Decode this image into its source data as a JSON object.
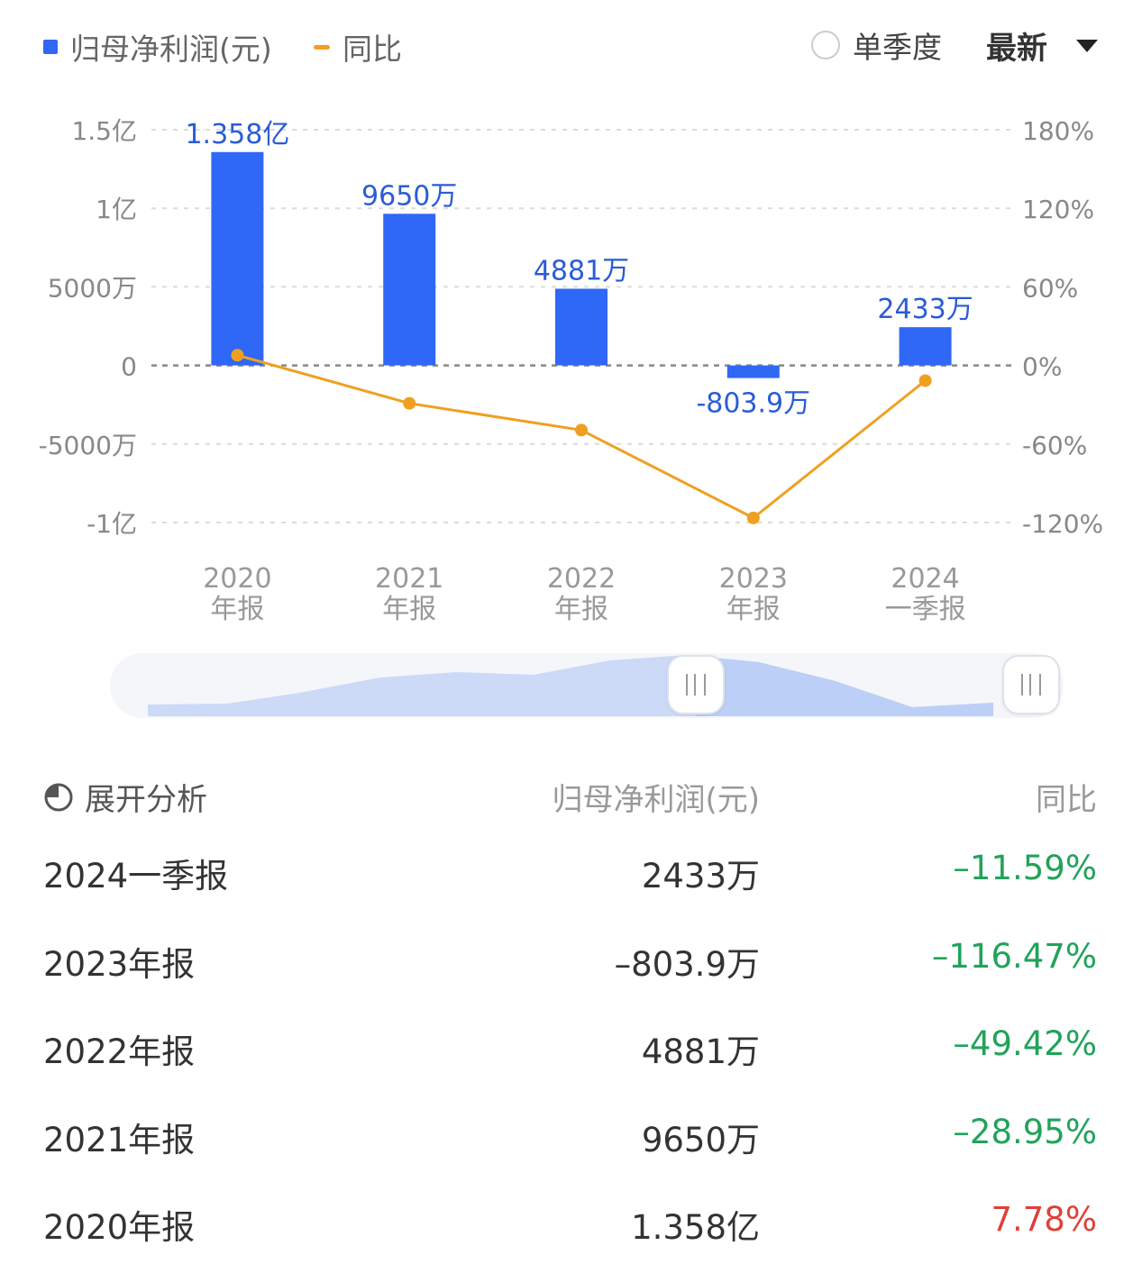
{
  "legend": {
    "bar_label": "归母净利润(元)",
    "line_label": "同比"
  },
  "controls": {
    "radio_label": "单季度",
    "dropdown_value": "最新"
  },
  "colors": {
    "bar": "#2f67f6",
    "line": "#f0a020",
    "negative": "#22a35a",
    "positive": "#e0403a"
  },
  "chart_data": {
    "type": "bar+line",
    "categories": [
      {
        "year": "2020",
        "period": "年报"
      },
      {
        "year": "2021",
        "period": "年报"
      },
      {
        "year": "2022",
        "period": "年报"
      },
      {
        "year": "2023",
        "period": "年报"
      },
      {
        "year": "2024",
        "period": "一季报"
      }
    ],
    "series": [
      {
        "name": "归母净利润(元)",
        "type": "bar",
        "axis": "left",
        "values": [
          135800000,
          96500000,
          48810000,
          -8039000,
          24330000
        ],
        "labels": [
          "1.358亿",
          "9650万",
          "4881万",
          "-803.9万",
          "2433万"
        ]
      },
      {
        "name": "同比",
        "type": "line",
        "axis": "right",
        "values": [
          7.78,
          -28.95,
          -49.42,
          -116.47,
          -11.59
        ]
      }
    ],
    "left_axis": {
      "ticks": [
        150000000,
        100000000,
        50000000,
        0,
        -50000000,
        -100000000
      ],
      "tick_labels": [
        "1.5亿",
        "1亿",
        "5000万",
        "0",
        "-5000万",
        "-1亿"
      ],
      "range": [
        -100000000,
        150000000
      ]
    },
    "right_axis": {
      "ticks": [
        180,
        120,
        60,
        0,
        -60,
        -120
      ],
      "tick_labels": [
        "180%",
        "120%",
        "60%",
        "0%",
        "-60%",
        "-120%"
      ],
      "range": [
        -120,
        180
      ]
    },
    "grid": true
  },
  "table": {
    "expand_label": "展开分析",
    "col_value": "归母净利润(元)",
    "col_yoy": "同比",
    "rows": [
      {
        "period": "2024一季报",
        "value": "2433万",
        "yoy": "–11.59%",
        "trend": "down"
      },
      {
        "period": "2023年报",
        "value": "–803.9万",
        "yoy": "–116.47%",
        "trend": "down"
      },
      {
        "period": "2022年报",
        "value": "4881万",
        "yoy": "–49.42%",
        "trend": "down"
      },
      {
        "period": "2021年报",
        "value": "9650万",
        "yoy": "–28.95%",
        "trend": "down"
      },
      {
        "period": "2020年报",
        "value": "1.358亿",
        "yoy": "7.78%",
        "trend": "up"
      }
    ]
  }
}
